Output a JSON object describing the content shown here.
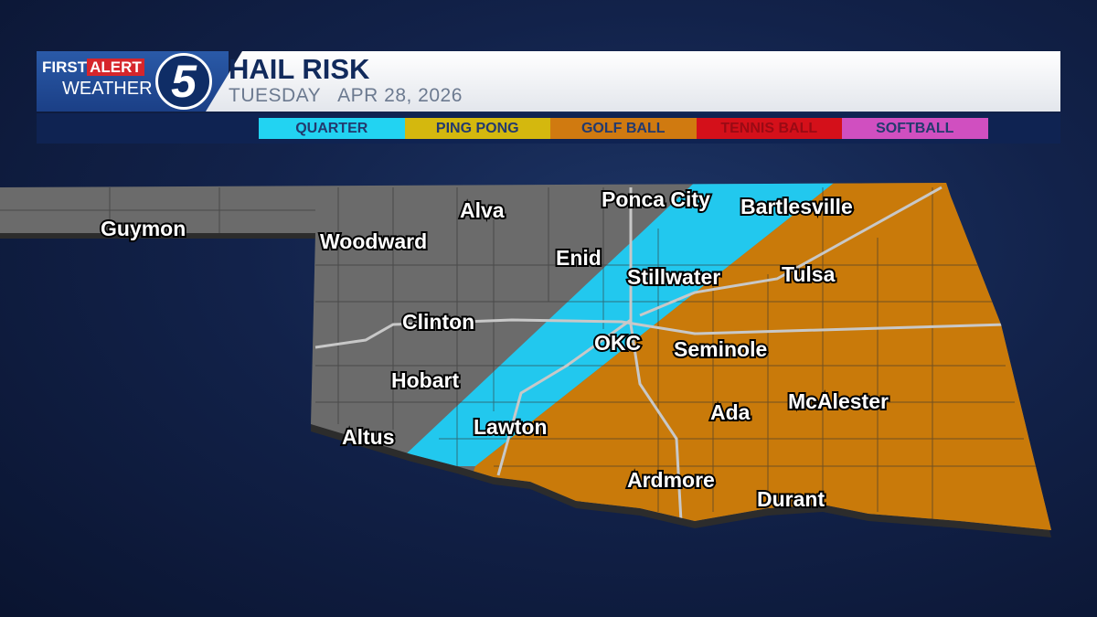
{
  "header": {
    "logo": {
      "first": "FIRST",
      "alert": "ALERT",
      "weather": "WEATHER",
      "channel": "5"
    },
    "title": "HAIL RISK",
    "day": "TUESDAY",
    "date": "APR 28, 2026"
  },
  "legend": [
    {
      "label": "QUARTER",
      "color": "#22d3f2"
    },
    {
      "label": "PING PONG",
      "color": "#d4b80e"
    },
    {
      "label": "GOLF BALL",
      "color": "#d07a10"
    },
    {
      "label": "TENNIS BALL",
      "color": "#d4101a"
    },
    {
      "label": "SOFTBALL",
      "color": "#d04fc0"
    }
  ],
  "map": {
    "risk_areas": [
      {
        "level": "none",
        "color": "#6b6b6b"
      },
      {
        "level": "QUARTER",
        "color": "#22c8ee"
      },
      {
        "level": "GOLF BALL",
        "color": "#c97a0a"
      }
    ],
    "cities": [
      "Guymon",
      "Alva",
      "Woodward",
      "Ponca City",
      "Bartlesville",
      "Enid",
      "Stillwater",
      "Tulsa",
      "Clinton",
      "OKC",
      "Seminole",
      "Hobart",
      "Altus",
      "Lawton",
      "Ada",
      "McAlester",
      "Ardmore",
      "Durant"
    ]
  }
}
